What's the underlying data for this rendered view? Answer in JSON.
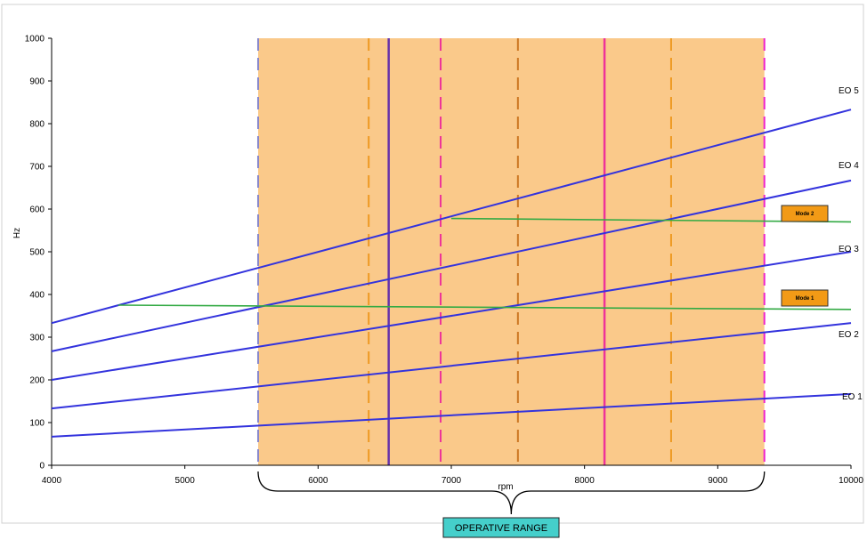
{
  "chart_data": {
    "type": "line",
    "title": "",
    "xlabel": "rpm",
    "ylabel": "Hz",
    "xlim": [
      4000,
      10000
    ],
    "ylim": [
      0,
      1000
    ],
    "x_ticks": [
      4000,
      5000,
      6000,
      7000,
      8000,
      9000,
      10000
    ],
    "y_ticks": [
      0,
      100,
      200,
      300,
      400,
      500,
      600,
      700,
      800,
      900,
      1000
    ],
    "x_tick_labels": [
      "4000",
      "5000",
      "6000",
      "7000",
      "8000",
      "9000",
      "10000"
    ],
    "y_tick_labels": [
      "0",
      "100",
      "200",
      "300",
      "400",
      "500",
      "600",
      "700",
      "800",
      "900",
      "1000"
    ],
    "grid": false,
    "series": [
      {
        "name": "EO 1",
        "x": [
          4000,
          10000
        ],
        "y": [
          67,
          167
        ],
        "color": "#3333dd"
      },
      {
        "name": "EO 2",
        "x": [
          4000,
          10000
        ],
        "y": [
          133,
          333
        ],
        "color": "#3333dd"
      },
      {
        "name": "EO 3",
        "x": [
          4000,
          10000
        ],
        "y": [
          200,
          500
        ],
        "color": "#3333dd"
      },
      {
        "name": "EO 4",
        "x": [
          4000,
          10000
        ],
        "y": [
          267,
          667
        ],
        "color": "#3333dd"
      },
      {
        "name": "EO 5",
        "x": [
          4000,
          10000
        ],
        "y": [
          333,
          833
        ],
        "color": "#3333dd"
      }
    ],
    "modes": [
      {
        "name": "Mode 1",
        "x": [
          4500,
          10000
        ],
        "y": [
          375,
          365
        ],
        "color": "#33aa44"
      },
      {
        "name": "Mode 2",
        "x": [
          7000,
          10000
        ],
        "y": [
          578,
          570
        ],
        "color": "#33aa44"
      }
    ],
    "operative_range": {
      "label": "OPERATIVE RANGE",
      "x": [
        5550,
        9350
      ],
      "fill": "#fac98a"
    },
    "vertical_lines": [
      {
        "x": 5550,
        "style": "dashed",
        "color": "#8888cc"
      },
      {
        "x": 6380,
        "style": "dashed",
        "color": "#ee9922"
      },
      {
        "x": 6530,
        "style": "solid",
        "color": "#6633aa"
      },
      {
        "x": 6920,
        "style": "dashed",
        "color": "#ee3399"
      },
      {
        "x": 7500,
        "style": "dashed",
        "color": "#cc7722"
      },
      {
        "x": 8150,
        "style": "solid",
        "color": "#ee3399"
      },
      {
        "x": 8650,
        "style": "dashed",
        "color": "#ee9922"
      },
      {
        "x": 9350,
        "style": "dashed",
        "color": "#ee22cc"
      }
    ]
  }
}
